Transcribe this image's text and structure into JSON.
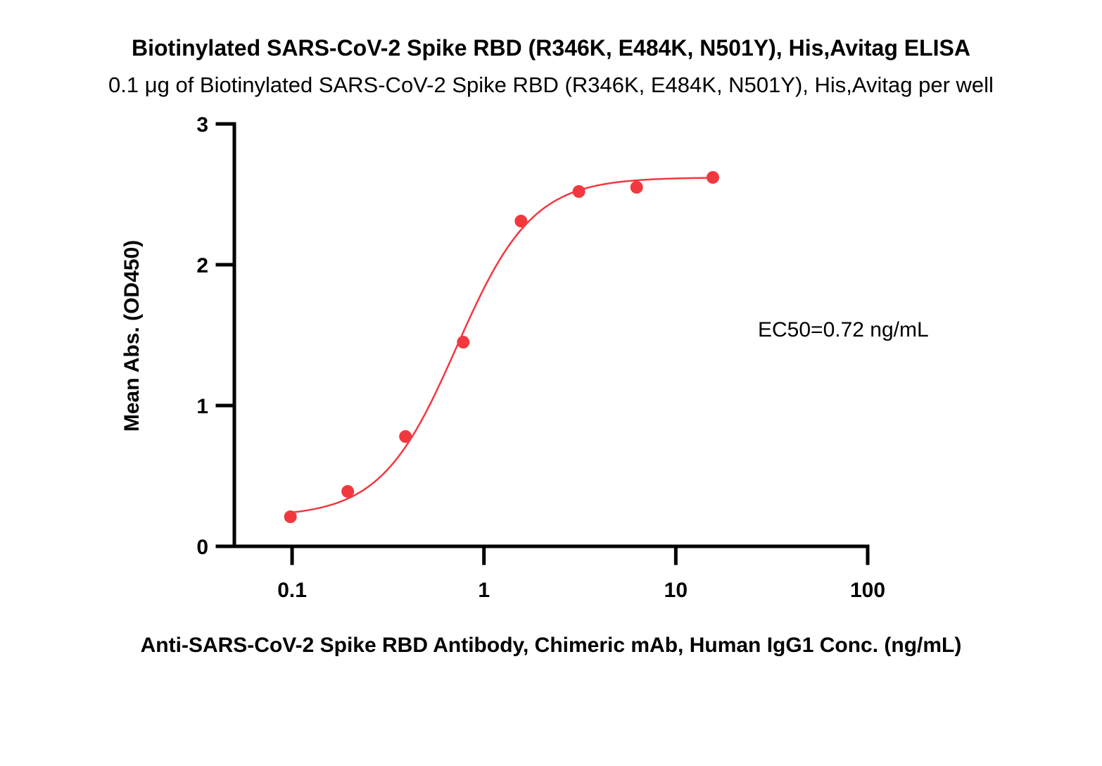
{
  "chart_data": {
    "type": "scatter",
    "title": "Biotinylated SARS-CoV-2 Spike RBD (R346K, E484K, N501Y), His,Avitag ELISA",
    "subtitle": "0.1 μg of Biotinylated SARS-CoV-2 Spike RBD (R346K, E484K, N501Y), His,Avitag per well",
    "xlabel": "Anti-SARS-CoV-2 Spike RBD Antibody, Chimeric mAb, Human IgG1 Conc. (ng/mL)",
    "ylabel": "Mean Abs. (OD450)",
    "x_scale": "log",
    "xlim": [
      0.05,
      100
    ],
    "ylim": [
      0,
      3
    ],
    "x_ticks": [
      {
        "value": 0.1,
        "label": "0.1"
      },
      {
        "value": 1,
        "label": "1"
      },
      {
        "value": 10,
        "label": "10"
      },
      {
        "value": 100,
        "label": "100"
      }
    ],
    "y_ticks": [
      {
        "value": 0,
        "label": "0"
      },
      {
        "value": 1,
        "label": "1"
      },
      {
        "value": 2,
        "label": "2"
      },
      {
        "value": 3,
        "label": "3"
      }
    ],
    "grid": false,
    "legend": "none",
    "series": [
      {
        "color": "#f2383f",
        "points": [
          {
            "x": 0.098,
            "y": 0.21
          },
          {
            "x": 0.195,
            "y": 0.39
          },
          {
            "x": 0.39,
            "y": 0.78
          },
          {
            "x": 0.78,
            "y": 1.45
          },
          {
            "x": 1.56,
            "y": 2.31
          },
          {
            "x": 3.125,
            "y": 2.52
          },
          {
            "x": 6.25,
            "y": 2.55
          },
          {
            "x": 15.6,
            "y": 2.62
          }
        ],
        "fit": {
          "model": "4PL",
          "bottom": 0.21,
          "top": 2.62,
          "ec50": 0.72,
          "hill": 2.2
        }
      }
    ],
    "annotations": [
      {
        "text": "EC50=0.72 ng/mL"
      }
    ]
  }
}
